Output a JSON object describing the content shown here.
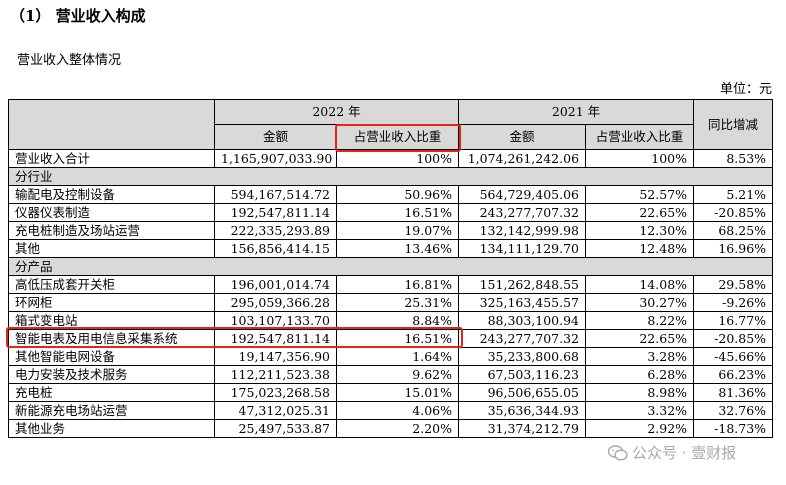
{
  "section_title": "（1） 营业收入构成",
  "subtitle": "营业收入整体情况",
  "unit": "单位：元",
  "headers": {
    "year_2022": "2022 年",
    "year_2021": "2021 年",
    "amount": "金额",
    "ratio": "占营业收入比重",
    "yoy": "同比增减"
  },
  "total_row": {
    "label": "营业收入合计",
    "amt22": "1,165,907,033.90",
    "pct22": "100%",
    "amt21": "1,074,261,242.06",
    "pct21": "100%",
    "yoy": "8.53%"
  },
  "groups": [
    {
      "title": "分行业",
      "rows": [
        {
          "label": "输配电及控制设备",
          "amt22": "594,167,514.72",
          "pct22": "50.96%",
          "amt21": "564,729,405.06",
          "pct21": "52.57%",
          "yoy": "5.21%"
        },
        {
          "label": "仪器仪表制造",
          "amt22": "192,547,811.14",
          "pct22": "16.51%",
          "amt21": "243,277,707.32",
          "pct21": "22.65%",
          "yoy": "-20.85%"
        },
        {
          "label": "充电桩制造及场站运营",
          "amt22": "222,335,293.89",
          "pct22": "19.07%",
          "amt21": "132,142,999.98",
          "pct21": "12.30%",
          "yoy": "68.25%"
        },
        {
          "label": "其他",
          "amt22": "156,856,414.15",
          "pct22": "13.46%",
          "amt21": "134,111,129.70",
          "pct21": "12.48%",
          "yoy": "16.96%"
        }
      ]
    },
    {
      "title": "分产品",
      "rows": [
        {
          "label": "高低压成套开关柜",
          "amt22": "196,001,014.74",
          "pct22": "16.81%",
          "amt21": "151,262,848.55",
          "pct21": "14.08%",
          "yoy": "29.58%"
        },
        {
          "label": "环网柜",
          "amt22": "295,059,366.28",
          "pct22": "25.31%",
          "amt21": "325,163,455.57",
          "pct21": "30.27%",
          "yoy": "-9.26%"
        },
        {
          "label": "箱式变电站",
          "amt22": "103,107,133.70",
          "pct22": "8.84%",
          "amt21": "88,303,100.94",
          "pct21": "8.22%",
          "yoy": "16.77%"
        },
        {
          "label": "智能电表及用电信息采集系统",
          "amt22": "192,547,811.14",
          "pct22": "16.51%",
          "amt21": "243,277,707.32",
          "pct21": "22.65%",
          "yoy": "-20.85%"
        },
        {
          "label": "其他智能电网设备",
          "amt22": "19,147,356.90",
          "pct22": "1.64%",
          "amt21": "35,233,800.68",
          "pct21": "3.28%",
          "yoy": "-45.66%"
        },
        {
          "label": "电力安装及技术服务",
          "amt22": "112,211,523.38",
          "pct22": "9.62%",
          "amt21": "67,503,116.23",
          "pct21": "6.28%",
          "yoy": "66.23%"
        },
        {
          "label": "充电桩",
          "amt22": "175,023,268.58",
          "pct22": "15.01%",
          "amt21": "96,506,655.05",
          "pct21": "8.98%",
          "yoy": "81.36%"
        },
        {
          "label": "新能源充电场站运营",
          "amt22": "47,312,025.31",
          "pct22": "4.06%",
          "amt21": "35,636,344.93",
          "pct21": "3.32%",
          "yoy": "32.76%"
        },
        {
          "label": "其他业务",
          "amt22": "25,497,533.87",
          "pct22": "2.20%",
          "amt21": "31,374,212.79",
          "pct21": "2.92%",
          "yoy": "-18.73%"
        }
      ]
    }
  ],
  "watermark": "公众号 · 壹财报",
  "colors": {
    "header_bg": "#d9d9d9",
    "highlight": "#e3261b"
  }
}
